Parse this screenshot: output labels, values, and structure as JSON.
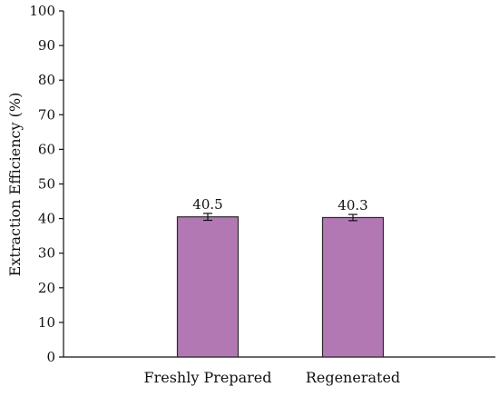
{
  "chart_data": {
    "type": "bar",
    "title": "",
    "xlabel": "",
    "ylabel": "Extraction Efficiency (%)",
    "ylim": [
      0,
      100
    ],
    "yticks": [
      0,
      10,
      20,
      30,
      40,
      50,
      60,
      70,
      80,
      90,
      100
    ],
    "categories": [
      "Freshly Prepared",
      "Regenerated"
    ],
    "values": [
      40.5,
      40.3
    ],
    "data_labels": [
      "40.5",
      "40.3"
    ],
    "error": [
      1.0,
      0.9
    ],
    "grid": false,
    "legend": "none",
    "colors": {
      "bar_fill": "#b278b4",
      "bar_stroke": "#2a2a2a",
      "axis": "#111111"
    }
  }
}
